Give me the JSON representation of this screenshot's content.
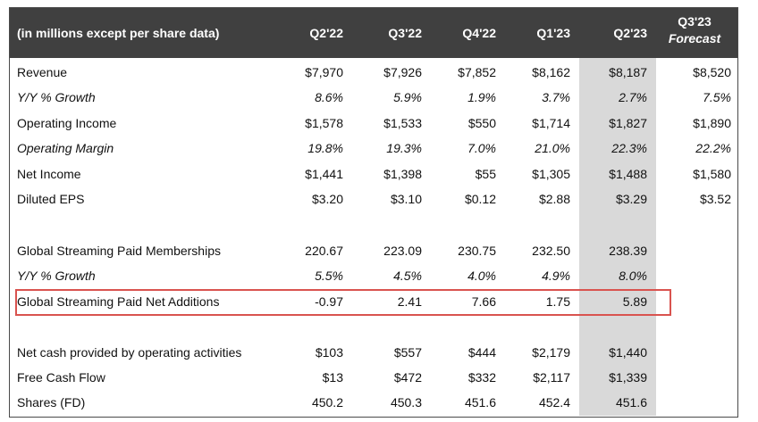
{
  "header": {
    "title": "(in millions except per share data)",
    "columns": [
      "Q2'22",
      "Q3'22",
      "Q4'22",
      "Q1'23",
      "Q2'23"
    ],
    "forecast_line1": "Q3'23",
    "forecast_line2": "Forecast"
  },
  "rows": {
    "revenue": {
      "label": "Revenue",
      "values": [
        "$7,970",
        "$7,926",
        "$7,852",
        "$8,162",
        "$8,187",
        "$8,520"
      ]
    },
    "revenue_growth": {
      "label": "Y/Y % Growth",
      "values": [
        "8.6%",
        "5.9%",
        "1.9%",
        "3.7%",
        "2.7%",
        "7.5%"
      ]
    },
    "operating_income": {
      "label": "Operating Income",
      "values": [
        "$1,578",
        "$1,533",
        "$550",
        "$1,714",
        "$1,827",
        "$1,890"
      ]
    },
    "operating_margin": {
      "label": "Operating Margin",
      "values": [
        "19.8%",
        "19.3%",
        "7.0%",
        "21.0%",
        "22.3%",
        "22.2%"
      ]
    },
    "net_income": {
      "label": "Net Income",
      "values": [
        "$1,441",
        "$1,398",
        "$55",
        "$1,305",
        "$1,488",
        "$1,580"
      ]
    },
    "diluted_eps": {
      "label": "Diluted EPS",
      "values": [
        "$3.20",
        "$3.10",
        "$0.12",
        "$2.88",
        "$3.29",
        "$3.52"
      ]
    },
    "memberships": {
      "label": "Global Streaming Paid Memberships",
      "values": [
        "220.67",
        "223.09",
        "230.75",
        "232.50",
        "238.39"
      ]
    },
    "memberships_growth": {
      "label": "Y/Y % Growth",
      "values": [
        "5.5%",
        "4.5%",
        "4.0%",
        "4.9%",
        "8.0%"
      ]
    },
    "net_additions": {
      "label": "Global Streaming Paid Net Additions",
      "values": [
        "-0.97",
        "2.41",
        "7.66",
        "1.75",
        "5.89"
      ]
    },
    "operating_cash": {
      "label": "Net cash provided by operating activities",
      "values": [
        "$103",
        "$557",
        "$444",
        "$2,179",
        "$1,440"
      ]
    },
    "free_cash_flow": {
      "label": "Free Cash Flow",
      "values": [
        "$13",
        "$472",
        "$332",
        "$2,117",
        "$1,339"
      ]
    },
    "shares": {
      "label": "Shares (FD)",
      "values": [
        "450.2",
        "450.3",
        "451.6",
        "452.4",
        "451.6"
      ]
    }
  }
}
